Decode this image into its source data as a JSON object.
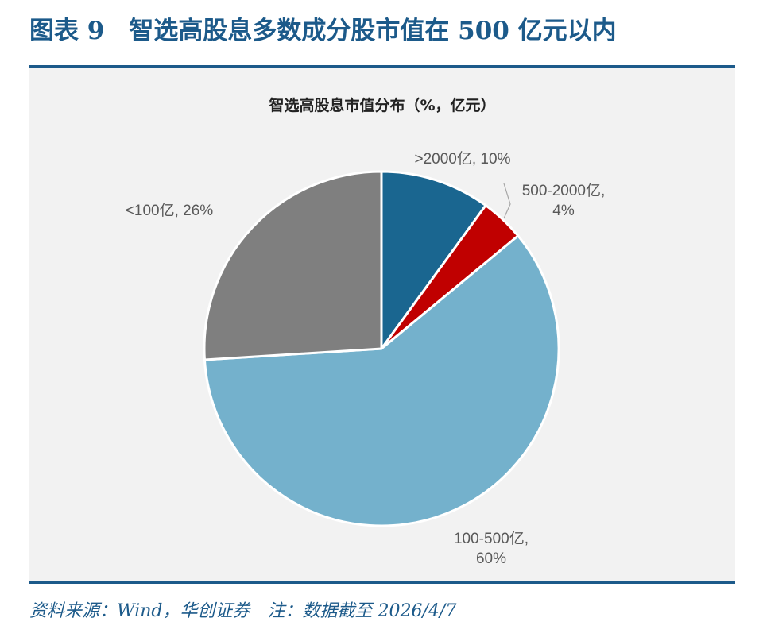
{
  "figure": {
    "title": "图表 9　智选高股息多数成分股市值在 500 亿元以内",
    "source": "资料来源：Wind，华创证券　注：数据截至 2026/4/7"
  },
  "chart_data": {
    "type": "pie",
    "title": "智选高股息市值分布（%，亿元）",
    "slices": [
      {
        "category": ">2000亿",
        "value": 10,
        "color": "#1a6690",
        "label_lines": [
          ">2000亿, 10%"
        ]
      },
      {
        "category": "500-2000亿",
        "value": 4,
        "color": "#c00000",
        "label_lines": [
          "500-2000亿,",
          "4%"
        ]
      },
      {
        "category": "100-500亿",
        "value": 60,
        "color": "#74b1cc",
        "label_lines": [
          "100-500亿,",
          "60%"
        ]
      },
      {
        "category": "<100亿",
        "value": 26,
        "color": "#7f7f7f",
        "label_lines": [
          "<100亿, 26%"
        ]
      }
    ],
    "start_angle": "12 o'clock",
    "direction": "clockwise",
    "legend": "none"
  }
}
